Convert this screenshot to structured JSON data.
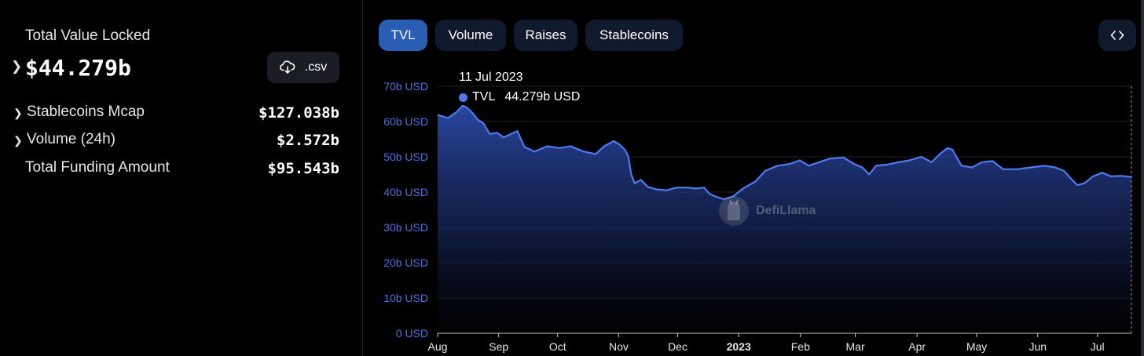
{
  "stats": {
    "tvl_label": "Total Value Locked",
    "tvl_value": "$44.279b",
    "csv_label": ".csv",
    "rows": [
      {
        "label": "Stablecoins Mcap",
        "value": "$127.038b",
        "expandable": true
      },
      {
        "label": "Volume (24h)",
        "value": "$2.572b",
        "expandable": true
      },
      {
        "label": "Total Funding Amount",
        "value": "$95.543b",
        "expandable": false
      }
    ]
  },
  "tabs": [
    {
      "label": "TVL",
      "active": true
    },
    {
      "label": "Volume",
      "active": false
    },
    {
      "label": "Raises",
      "active": false
    },
    {
      "label": "Stablecoins",
      "active": false
    }
  ],
  "embed_icon": "code-icon",
  "tooltip": {
    "date": "11 Jul 2023",
    "series": "TVL",
    "value": "44.279b USD"
  },
  "watermark": "DefiLlama",
  "colors": {
    "accent": "#2a5db4",
    "line": "#4f7bf0",
    "tab_bg": "#111a2d"
  },
  "chart_data": {
    "type": "area",
    "ylim": [
      0,
      70
    ],
    "y_ticks": [
      "0 USD",
      "10b USD",
      "20b USD",
      "30b USD",
      "40b USD",
      "50b USD",
      "60b USD",
      "70b USD"
    ],
    "x_ticks": [
      {
        "label": "Aug",
        "t": 0.0,
        "bold": false
      },
      {
        "label": "Sep",
        "t": 0.088,
        "bold": false
      },
      {
        "label": "Oct",
        "t": 0.173,
        "bold": false
      },
      {
        "label": "Nov",
        "t": 0.261,
        "bold": false
      },
      {
        "label": "Dec",
        "t": 0.346,
        "bold": false
      },
      {
        "label": "2023",
        "t": 0.434,
        "bold": true
      },
      {
        "label": "Feb",
        "t": 0.523,
        "bold": false
      },
      {
        "label": "Mar",
        "t": 0.602,
        "bold": false
      },
      {
        "label": "Apr",
        "t": 0.691,
        "bold": false
      },
      {
        "label": "May",
        "t": 0.777,
        "bold": false
      },
      {
        "label": "Jun",
        "t": 0.865,
        "bold": false
      },
      {
        "label": "Jul",
        "t": 0.951,
        "bold": false
      }
    ],
    "series": [
      {
        "values": [
          [
            0.0,
            61.9
          ],
          [
            0.015,
            61.0
          ],
          [
            0.028,
            62.8
          ],
          [
            0.036,
            64.5
          ],
          [
            0.042,
            64.0
          ],
          [
            0.05,
            62.5
          ],
          [
            0.058,
            60.5
          ],
          [
            0.066,
            59.5
          ],
          [
            0.075,
            56.5
          ],
          [
            0.086,
            56.8
          ],
          [
            0.095,
            55.5
          ],
          [
            0.106,
            56.5
          ],
          [
            0.115,
            57.3
          ],
          [
            0.125,
            52.8
          ],
          [
            0.14,
            51.5
          ],
          [
            0.158,
            53.0
          ],
          [
            0.175,
            52.5
          ],
          [
            0.192,
            53.0
          ],
          [
            0.21,
            51.5
          ],
          [
            0.228,
            50.8
          ],
          [
            0.24,
            53.0
          ],
          [
            0.254,
            54.5
          ],
          [
            0.262,
            53.5
          ],
          [
            0.27,
            52.0
          ],
          [
            0.275,
            50.0
          ],
          [
            0.279,
            45.0
          ],
          [
            0.284,
            42.5
          ],
          [
            0.293,
            43.5
          ],
          [
            0.303,
            41.5
          ],
          [
            0.315,
            40.8
          ],
          [
            0.33,
            40.5
          ],
          [
            0.345,
            41.3
          ],
          [
            0.36,
            41.3
          ],
          [
            0.372,
            41.0
          ],
          [
            0.384,
            41.3
          ],
          [
            0.392,
            39.5
          ],
          [
            0.4,
            38.8
          ],
          [
            0.412,
            38.0
          ],
          [
            0.426,
            38.8
          ],
          [
            0.44,
            41.0
          ],
          [
            0.458,
            43.0
          ],
          [
            0.472,
            46.0
          ],
          [
            0.49,
            47.5
          ],
          [
            0.508,
            48.0
          ],
          [
            0.522,
            49.0
          ],
          [
            0.535,
            47.5
          ],
          [
            0.55,
            48.5
          ],
          [
            0.565,
            49.5
          ],
          [
            0.585,
            49.8
          ],
          [
            0.6,
            48.0
          ],
          [
            0.612,
            47.0
          ],
          [
            0.622,
            45.0
          ],
          [
            0.632,
            47.5
          ],
          [
            0.648,
            47.8
          ],
          [
            0.665,
            48.5
          ],
          [
            0.68,
            49.0
          ],
          [
            0.697,
            50.0
          ],
          [
            0.712,
            48.5
          ],
          [
            0.725,
            51.0
          ],
          [
            0.735,
            52.5
          ],
          [
            0.742,
            52.0
          ],
          [
            0.755,
            47.5
          ],
          [
            0.77,
            47.0
          ],
          [
            0.785,
            48.5
          ],
          [
            0.8,
            48.8
          ],
          [
            0.815,
            46.5
          ],
          [
            0.835,
            46.5
          ],
          [
            0.855,
            47.0
          ],
          [
            0.875,
            47.5
          ],
          [
            0.89,
            47.0
          ],
          [
            0.903,
            46.0
          ],
          [
            0.912,
            44.0
          ],
          [
            0.922,
            42.0
          ],
          [
            0.932,
            42.5
          ],
          [
            0.945,
            44.5
          ],
          [
            0.958,
            45.5
          ],
          [
            0.97,
            44.5
          ],
          [
            0.985,
            44.6
          ],
          [
            1.0,
            44.279
          ]
        ]
      }
    ]
  }
}
